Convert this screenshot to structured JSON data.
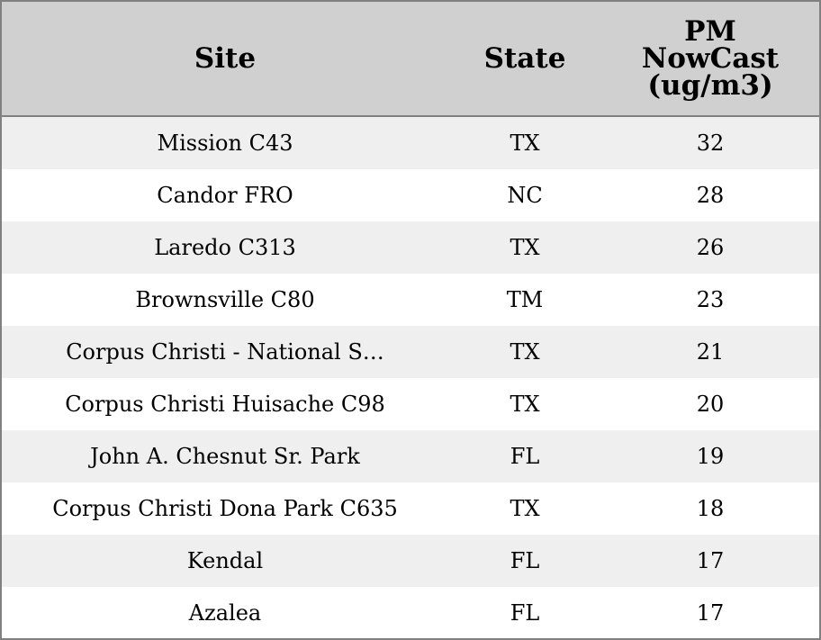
{
  "table": {
    "header": [
      "Site",
      "State",
      "PM NowCast (ug/m3)"
    ],
    "rows": [
      [
        "Mission C43",
        "TX",
        32
      ],
      [
        "Candor FRO",
        "NC",
        28
      ],
      [
        "Laredo C313",
        "TX",
        26
      ],
      [
        "Brownsville C80",
        "TM",
        23
      ],
      [
        "Corpus Christi - National S…",
        "TX",
        21
      ],
      [
        "Corpus Christi Huisache C98",
        "TX",
        20
      ],
      [
        "John A. Chesnut Sr. Park",
        "FL",
        19
      ],
      [
        "Corpus Christi Dona Park C635",
        "TX",
        18
      ],
      [
        "Kendal",
        "FL",
        17
      ],
      [
        "Azalea",
        "FL",
        17
      ]
    ]
  }
}
